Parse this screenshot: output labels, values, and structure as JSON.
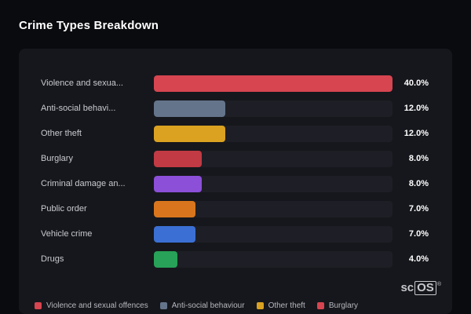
{
  "page": {
    "title": "Crime Types Breakdown"
  },
  "logo": {
    "prefix": "sc",
    "boxed": "OS",
    "reg": "®"
  },
  "chart_data": {
    "type": "bar",
    "orientation": "horizontal",
    "title": "Crime Types Breakdown",
    "xlim": [
      0,
      40
    ],
    "grid": false,
    "legend_position": "bottom",
    "categories": [
      "Violence and sexua...",
      "Anti-social behavi...",
      "Other theft",
      "Burglary",
      "Criminal damage an...",
      "Public order",
      "Vehicle crime",
      "Drugs"
    ],
    "values": [
      40.0,
      12.0,
      12.0,
      8.0,
      8.0,
      7.0,
      7.0,
      4.0
    ],
    "rows": [
      {
        "label": "Violence and sexua...",
        "value": 40.0,
        "value_label": "40.0%",
        "color": "#d64550"
      },
      {
        "label": "Anti-social behavi...",
        "value": 12.0,
        "value_label": "12.0%",
        "color": "#64748b"
      },
      {
        "label": "Other theft",
        "value": 12.0,
        "value_label": "12.0%",
        "color": "#dba221"
      },
      {
        "label": "Burglary",
        "value": 8.0,
        "value_label": "8.0%",
        "color": "#c23a43"
      },
      {
        "label": "Criminal damage an...",
        "value": 8.0,
        "value_label": "8.0%",
        "color": "#8b4fd8"
      },
      {
        "label": "Public order",
        "value": 7.0,
        "value_label": "7.0%",
        "color": "#d9761d"
      },
      {
        "label": "Vehicle crime",
        "value": 7.0,
        "value_label": "7.0%",
        "color": "#3b6fd4"
      },
      {
        "label": "Drugs",
        "value": 4.0,
        "value_label": "4.0%",
        "color": "#27a258"
      }
    ],
    "legend": [
      {
        "label": "Violence and sexual offences",
        "color": "#d64550"
      },
      {
        "label": "Anti-social behaviour",
        "color": "#64748b"
      },
      {
        "label": "Other theft",
        "color": "#dba221"
      },
      {
        "label": "Burglary",
        "color": "#d64550"
      }
    ]
  }
}
